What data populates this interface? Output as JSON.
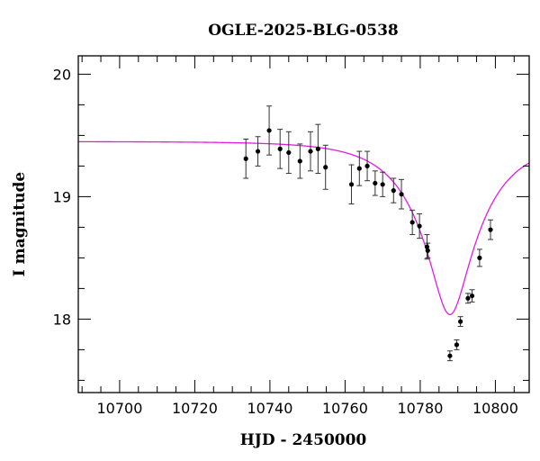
{
  "chart_data": {
    "type": "scatter",
    "title": "OGLE-2025-BLG-0538",
    "xlabel": "HJD - 2450000",
    "ylabel": "I magnitude",
    "xlim": [
      10689,
      10809
    ],
    "ylim": [
      20.15,
      17.4
    ],
    "y_inverted": true,
    "grid": false,
    "x_ticks": [
      10700,
      10720,
      10740,
      10760,
      10780,
      10800
    ],
    "x_tick_labels": [
      "10700",
      "10720",
      "10740",
      "10760",
      "10780",
      "10800"
    ],
    "x_minor_step": 5,
    "y_ticks": [
      18,
      19,
      20
    ],
    "y_tick_labels": [
      "18",
      "19",
      "20"
    ],
    "y_minor_step": 0.25,
    "colors": {
      "points": "#000000",
      "model": "#e31ce3",
      "axes": "#000000"
    },
    "series": [
      {
        "kind": "points_with_errorbars",
        "points": [
          {
            "x": 10733.6,
            "y": 19.31,
            "err": 0.16
          },
          {
            "x": 10736.8,
            "y": 19.37,
            "err": 0.12
          },
          {
            "x": 10739.8,
            "y": 19.54,
            "err": 0.2
          },
          {
            "x": 10742.7,
            "y": 19.39,
            "err": 0.16
          },
          {
            "x": 10745.0,
            "y": 19.36,
            "err": 0.17
          },
          {
            "x": 10748.0,
            "y": 19.29,
            "err": 0.14
          },
          {
            "x": 10750.8,
            "y": 19.37,
            "err": 0.16
          },
          {
            "x": 10752.8,
            "y": 19.39,
            "err": 0.2
          },
          {
            "x": 10754.8,
            "y": 19.24,
            "err": 0.18
          },
          {
            "x": 10761.7,
            "y": 19.1,
            "err": 0.16
          },
          {
            "x": 10763.8,
            "y": 19.23,
            "err": 0.14
          },
          {
            "x": 10765.9,
            "y": 19.25,
            "err": 0.12
          },
          {
            "x": 10768.0,
            "y": 19.11,
            "err": 0.1
          },
          {
            "x": 10770.0,
            "y": 19.1,
            "err": 0.1
          },
          {
            "x": 10772.9,
            "y": 19.05,
            "err": 0.1
          },
          {
            "x": 10775.0,
            "y": 19.02,
            "err": 0.12
          },
          {
            "x": 10777.9,
            "y": 18.79,
            "err": 0.1
          },
          {
            "x": 10779.8,
            "y": 18.76,
            "err": 0.1
          },
          {
            "x": 10781.8,
            "y": 18.59,
            "err": 0.1
          },
          {
            "x": 10782.0,
            "y": 18.56,
            "err": 0.06
          },
          {
            "x": 10787.9,
            "y": 17.7,
            "err": 0.04
          },
          {
            "x": 10789.7,
            "y": 17.79,
            "err": 0.04
          },
          {
            "x": 10790.7,
            "y": 17.98,
            "err": 0.04
          },
          {
            "x": 10792.7,
            "y": 18.17,
            "err": 0.04
          },
          {
            "x": 10793.8,
            "y": 18.19,
            "err": 0.05
          },
          {
            "x": 10795.8,
            "y": 18.5,
            "err": 0.07
          },
          {
            "x": 10798.7,
            "y": 18.73,
            "err": 0.08
          }
        ]
      },
      {
        "kind": "model_curve",
        "t0": 10787.9,
        "tE": 16,
        "u0": 0.28,
        "baseline": 19.45,
        "plot_from": 10689,
        "plot_to": 10809
      }
    ]
  }
}
